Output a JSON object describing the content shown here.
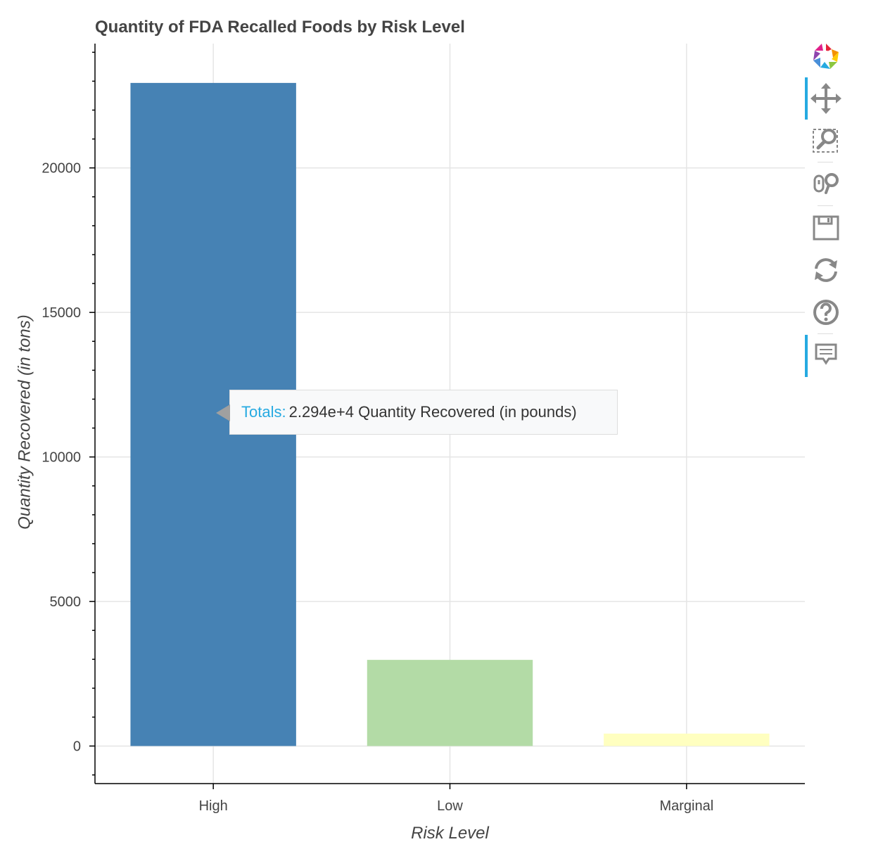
{
  "chart_data": {
    "type": "bar",
    "title": "Quantity of FDA Recalled Foods by Risk Level",
    "xlabel": "Risk Level",
    "ylabel": "Quantity Recovered (in tons)",
    "categories": [
      "High",
      "Low",
      "Marginal"
    ],
    "values": [
      22940,
      2980,
      430
    ],
    "colors": [
      "#4682b4",
      "#b3dba6",
      "#ffffc0"
    ],
    "ylim": [
      -1300,
      24300
    ],
    "yticks": [
      0,
      5000,
      10000,
      15000,
      20000
    ],
    "grid": true
  },
  "tooltip": {
    "label": "Totals:",
    "value": "2.294e+4 Quantity Recovered (in pounds)"
  },
  "toolbar": {
    "tools": [
      "bokeh-logo-icon",
      "pan-icon",
      "box-zoom-icon",
      "wheel-zoom-icon",
      "save-icon",
      "reset-icon",
      "help-icon",
      "hover-icon"
    ]
  }
}
